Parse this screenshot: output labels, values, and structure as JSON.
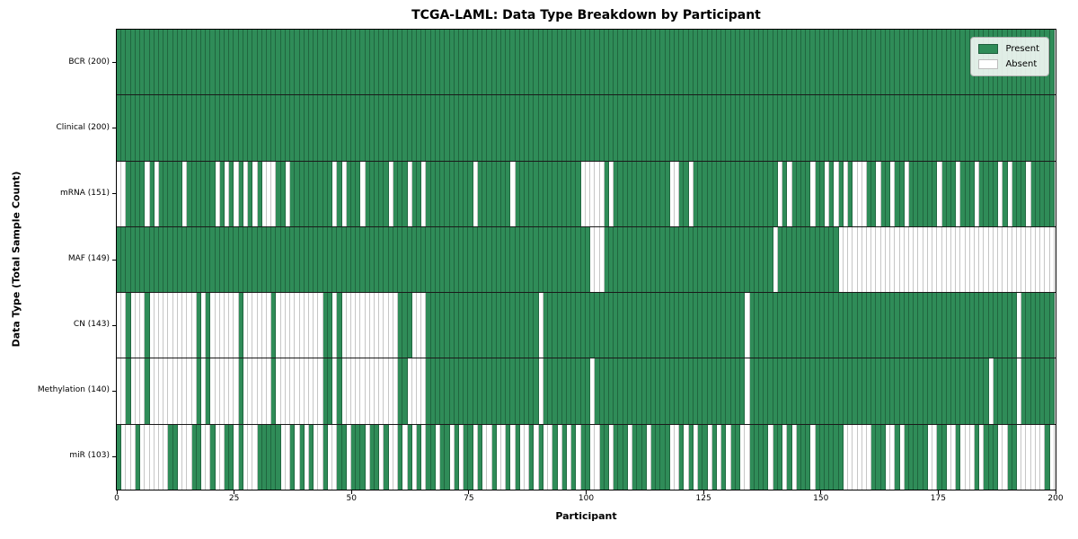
{
  "title": "TCGA-LAML: Data Type Breakdown by Participant",
  "xlabel": "Participant",
  "ylabel": "Data Type (Total Sample Count)",
  "legend": {
    "present_label": "Present",
    "absent_label": "Absent"
  },
  "colors": {
    "present": "#2F8C58",
    "present_edge": "#20663F",
    "absent": "#FFFFFF",
    "absent_edge": "#C6C6C6",
    "row_separator": "#1A1A1A",
    "frame": "#000000"
  },
  "x_ticks": [
    "0",
    "25",
    "50",
    "75",
    "100",
    "125",
    "150",
    "175",
    "200"
  ],
  "chart_data": {
    "type": "heatmap",
    "x_range": [
      0,
      200
    ],
    "n_participants": 200,
    "legend_entries": [
      "Present",
      "Absent"
    ],
    "value_encoding": {
      "1": "Present",
      "0": "Absent"
    },
    "rows": [
      {
        "name": "BCR",
        "label": "BCR (200)",
        "total": 200,
        "pattern": "11111111111111111111111111111111111111111111111111111111111111111111111111111111111111111111111111111111111111111111111111111111111111111111111111111111111111111111111111111111111111111111111111111111"
      },
      {
        "name": "Clinical",
        "label": "Clinical (200)",
        "total": 200,
        "pattern": "11111111111111111111111111111111111111111111111111111111111111111111111111111111111111111111111111111111111111111111111111111111111111111111111111111111111111111111111111111111111111111111111111111111"
      },
      {
        "name": "mRNA",
        "label": "mRNA (151)",
        "total": 151,
        "pattern": "00111101011111011111101010101010001101111111110101110111110111011011111111110111111101111111111111100000101111111111110011011111111111111111101011110110101010001101101101111110111011101111010111011111"
      },
      {
        "name": "MAF",
        "label": "MAF (149)",
        "total": 149,
        "pattern": "11111111111111111111111111111111111111111111111111111111111111111111111111111111111111111111111111111000111111111111111111111111111111111111011111111111110000000000000000000000000000000000000000000000"
      },
      {
        "name": "CN",
        "label": "CN (143)",
        "total": 143,
        "pattern": "00100010000000000101000000100000010000000000110100000000000011100011111111111111111111111101111111111111111111111111111111111111111111011111111111111111111111111111111111111111111111111111111101111111"
      },
      {
        "name": "Methylation",
        "label": "Methylation (140)",
        "total": 140,
        "pattern": "00100010000000000101000000100000010000000000110100000000000011000011111111111111111111111101111111111011111111111111111111111111111111011111111111111111111111111111111111111111111111111101111101111111"
      },
      {
        "name": "miR",
        "label": "miR (103)",
        "total": 103,
        "pattern": "10001000000110001100100110100011111001010100100110111011010010101011011010110100100101001010010101011001101110111011110010101101010110011110110101110111111000000111001011111001100100010111001100000010"
      }
    ]
  }
}
